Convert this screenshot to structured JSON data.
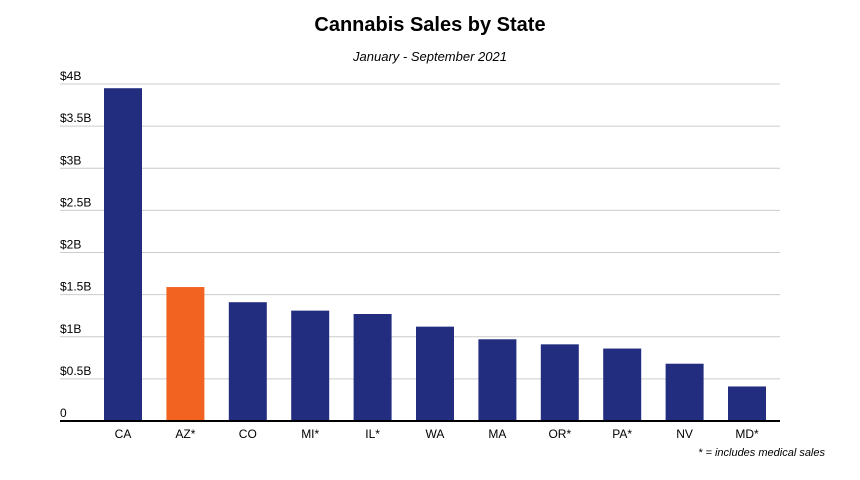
{
  "chart_data": {
    "type": "bar",
    "title": "Cannabis Sales by State",
    "subtitle": "January - September 2021",
    "categories": [
      "CA",
      "AZ*",
      "CO",
      "MI*",
      "IL*",
      "WA",
      "MA",
      "OR*",
      "PA*",
      "NV",
      "MD*"
    ],
    "values": [
      3.95,
      1.59,
      1.41,
      1.31,
      1.27,
      1.12,
      0.97,
      0.91,
      0.86,
      0.68,
      0.41
    ],
    "value_unit": "billions USD",
    "highlight_category": "AZ*",
    "ylim": [
      0,
      4
    ],
    "yticks": [
      0,
      0.5,
      1,
      1.5,
      2,
      2.5,
      3,
      3.5,
      4
    ],
    "ytick_labels": [
      "0",
      "$0.5B",
      "$1B",
      "$1.5B",
      "$2B",
      "$2.5B",
      "$3B",
      "$3.5B",
      "$4B"
    ],
    "xlabel": "",
    "ylabel": "",
    "grid": true,
    "footnote": "* = includes medical sales",
    "colors": {
      "bar": "#232d80",
      "highlight": "#f26322",
      "grid": "#cccccc",
      "axis": "#000000"
    }
  }
}
